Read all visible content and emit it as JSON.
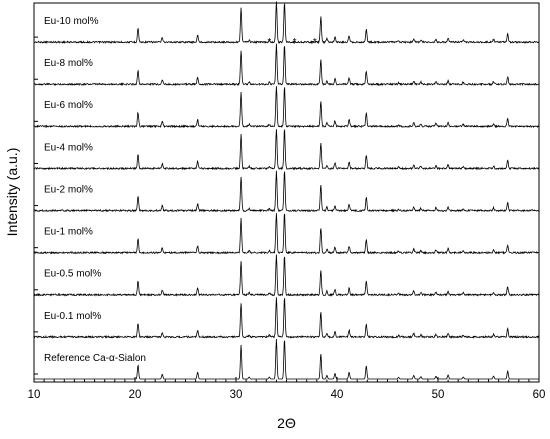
{
  "chart_data": {
    "type": "line",
    "xlabel": "2Θ",
    "ylabel": "Intensity (a.u.)",
    "xlim": [
      10,
      60
    ],
    "x_ticks": [
      "10",
      "20",
      "30",
      "40",
      "50",
      "60"
    ],
    "grid": false,
    "legend": "none",
    "line_color": "#000000",
    "markers": {
      "symbol": "*",
      "positions": [
        33.3,
        35.8,
        37.8
      ],
      "series": "Eu-10 mol%"
    },
    "peaks": {
      "x": [
        20.3,
        22.7,
        26.2,
        30.5,
        31.3,
        33.3,
        34.0,
        34.8,
        38.4,
        39.0,
        39.8,
        41.2,
        42.9,
        46.1,
        47.6,
        48.3,
        49.8,
        51.0,
        52.5,
        55.5,
        56.9
      ],
      "relative_intensity": [
        0.35,
        0.12,
        0.17,
        0.85,
        0.05,
        0.05,
        1.0,
        1.0,
        0.63,
        0.09,
        0.14,
        0.17,
        0.33,
        0.04,
        0.09,
        0.06,
        0.07,
        0.1,
        0.05,
        0.07,
        0.2
      ]
    },
    "series": [
      {
        "name": "Eu-10 mol%",
        "scale": 1.0
      },
      {
        "name": "Eu-8 mol%",
        "scale": 1.0
      },
      {
        "name": "Eu-6 mol%",
        "scale": 1.0
      },
      {
        "name": "Eu-4 mol%",
        "scale": 1.0
      },
      {
        "name": "Eu-2 mol%",
        "scale": 1.0
      },
      {
        "name": "Eu-1 mol%",
        "scale": 1.0
      },
      {
        "name": "Eu-0.5 mol%",
        "scale": 1.0
      },
      {
        "name": "Eu-0.1 mol%",
        "scale": 1.0
      },
      {
        "name": "Reference Ca-α-Sialon",
        "scale": 1.0
      }
    ]
  }
}
